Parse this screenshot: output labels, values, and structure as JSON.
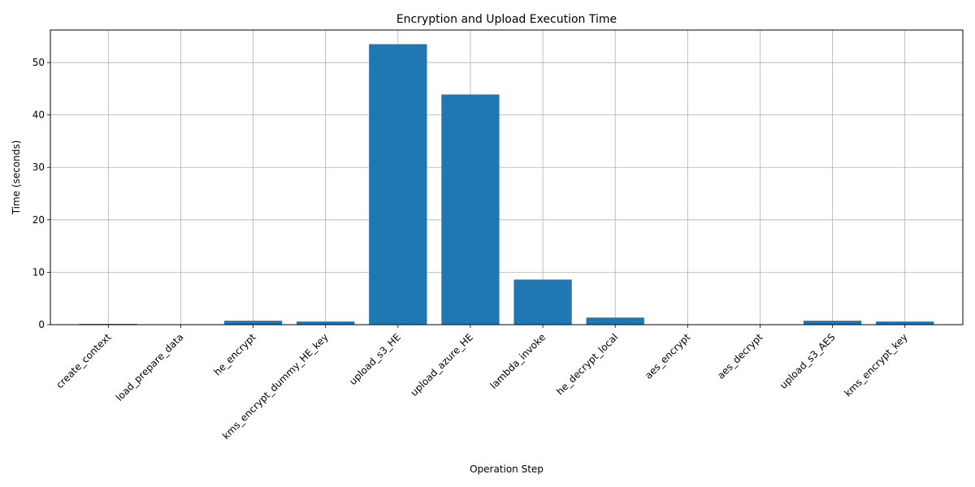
{
  "chart_data": {
    "type": "bar",
    "title": "Encryption and Upload Execution Time",
    "xlabel": "Operation Step",
    "ylabel": "Time (seconds)",
    "categories": [
      "create_context",
      "load_prepare_data",
      "he_encrypt",
      "kms_encrypt_dummy_HE_key",
      "upload_s3_HE",
      "upload_azure_HE",
      "lambda_invoke",
      "he_decrypt_local",
      "aes_encrypt",
      "aes_decrypt",
      "upload_s3_AES",
      "kms_encrypt_key"
    ],
    "values": [
      0.15,
      0.02,
      0.75,
      0.6,
      53.5,
      43.9,
      8.6,
      1.35,
      0.02,
      0.02,
      0.75,
      0.6
    ],
    "ylim": [
      0,
      56.2
    ],
    "yticks": [
      0,
      10,
      20,
      30,
      40,
      50
    ],
    "grid": true,
    "bar_color": "#1f77b4"
  }
}
